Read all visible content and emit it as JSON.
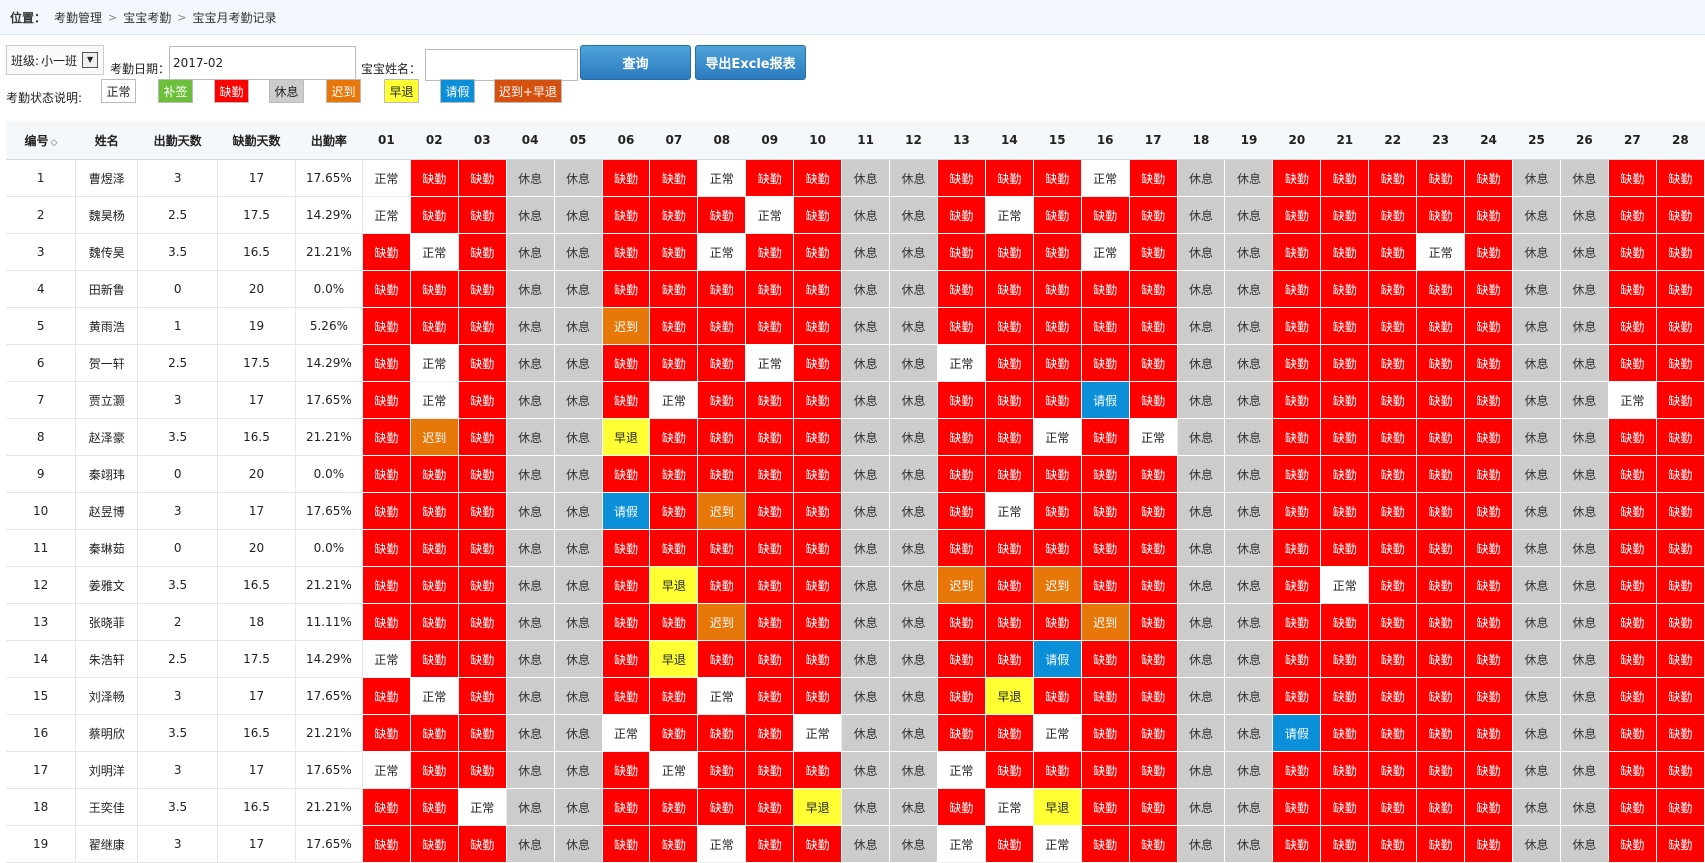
{
  "breadcrumb": {
    "label": "位置：",
    "items": [
      "考勤管理",
      "宝宝考勤",
      "宝宝月考勤记录"
    ]
  },
  "toolbar": {
    "class_label": "班级:",
    "class_value": "小一班",
    "date_label": "考勤日期：",
    "date_value": "2017-02",
    "name_label": "宝宝姓名：",
    "name_value": "",
    "search_button": "查询",
    "export_button": "导出Excle报表"
  },
  "legend": {
    "title": "考勤状态说明:",
    "items": [
      {
        "label": "正常",
        "color": "#ffffff"
      },
      {
        "label": "补签",
        "color": "#6cbf3a"
      },
      {
        "label": "缺勤",
        "color": "#ff0000"
      },
      {
        "label": "休息",
        "color": "#cccccc"
      },
      {
        "label": "迟到",
        "color": "#e8770a"
      },
      {
        "label": "早退",
        "color": "#ffff33"
      },
      {
        "label": "请假",
        "color": "#0b8fd8"
      },
      {
        "label": "迟到+早退",
        "color": "#d6500f"
      }
    ]
  },
  "table": {
    "headers": [
      "编号",
      "姓名",
      "出勤天数",
      "缺勤天数",
      "出勤率"
    ],
    "sort_icon": "sort-diamond-icon",
    "days": [
      "01",
      "02",
      "03",
      "04",
      "05",
      "06",
      "07",
      "08",
      "09",
      "10",
      "11",
      "12",
      "13",
      "14",
      "15",
      "16",
      "17",
      "18",
      "19",
      "20",
      "21",
      "22",
      "23",
      "24",
      "25",
      "26",
      "27",
      "28"
    ],
    "rows": [
      {
        "id": "1",
        "name": "曹煜泽",
        "present": "3",
        "absent": "17",
        "rate": "17.65%",
        "d": [
          "正常",
          "缺勤",
          "缺勤",
          "休息",
          "休息",
          "缺勤",
          "缺勤",
          "正常",
          "缺勤",
          "缺勤",
          "休息",
          "休息",
          "缺勤",
          "缺勤",
          "缺勤",
          "正常",
          "缺勤",
          "休息",
          "休息",
          "缺勤",
          "缺勤",
          "缺勤",
          "缺勤",
          "缺勤",
          "休息",
          "休息",
          "缺勤",
          "缺勤"
        ]
      },
      {
        "id": "2",
        "name": "魏昊杨",
        "present": "2.5",
        "absent": "17.5",
        "rate": "14.29%",
        "d": [
          "正常",
          "缺勤",
          "缺勤",
          "休息",
          "休息",
          "缺勤",
          "缺勤",
          "缺勤",
          "正常",
          "缺勤",
          "休息",
          "休息",
          "缺勤",
          "正常",
          "缺勤",
          "缺勤",
          "缺勤",
          "休息",
          "休息",
          "缺勤",
          "缺勤",
          "缺勤",
          "缺勤",
          "缺勤",
          "休息",
          "休息",
          "缺勤",
          "缺勤"
        ]
      },
      {
        "id": "3",
        "name": "魏传昊",
        "present": "3.5",
        "absent": "16.5",
        "rate": "21.21%",
        "d": [
          "缺勤",
          "正常",
          "缺勤",
          "休息",
          "休息",
          "缺勤",
          "缺勤",
          "正常",
          "缺勤",
          "缺勤",
          "休息",
          "休息",
          "缺勤",
          "缺勤",
          "缺勤",
          "正常",
          "缺勤",
          "休息",
          "休息",
          "缺勤",
          "缺勤",
          "缺勤",
          "正常",
          "缺勤",
          "休息",
          "休息",
          "缺勤",
          "缺勤"
        ]
      },
      {
        "id": "4",
        "name": "田新鲁",
        "present": "0",
        "absent": "20",
        "rate": "0.0%",
        "d": [
          "缺勤",
          "缺勤",
          "缺勤",
          "休息",
          "休息",
          "缺勤",
          "缺勤",
          "缺勤",
          "缺勤",
          "缺勤",
          "休息",
          "休息",
          "缺勤",
          "缺勤",
          "缺勤",
          "缺勤",
          "缺勤",
          "休息",
          "休息",
          "缺勤",
          "缺勤",
          "缺勤",
          "缺勤",
          "缺勤",
          "休息",
          "休息",
          "缺勤",
          "缺勤"
        ]
      },
      {
        "id": "5",
        "name": "黄雨浩",
        "present": "1",
        "absent": "19",
        "rate": "5.26%",
        "d": [
          "缺勤",
          "缺勤",
          "缺勤",
          "休息",
          "休息",
          "迟到",
          "缺勤",
          "缺勤",
          "缺勤",
          "缺勤",
          "休息",
          "休息",
          "缺勤",
          "缺勤",
          "缺勤",
          "缺勤",
          "缺勤",
          "休息",
          "休息",
          "缺勤",
          "缺勤",
          "缺勤",
          "缺勤",
          "缺勤",
          "休息",
          "休息",
          "缺勤",
          "缺勤"
        ]
      },
      {
        "id": "6",
        "name": "贺一轩",
        "present": "2.5",
        "absent": "17.5",
        "rate": "14.29%",
        "d": [
          "缺勤",
          "正常",
          "缺勤",
          "休息",
          "休息",
          "缺勤",
          "缺勤",
          "缺勤",
          "正常",
          "缺勤",
          "休息",
          "休息",
          "正常",
          "缺勤",
          "缺勤",
          "缺勤",
          "缺勤",
          "休息",
          "休息",
          "缺勤",
          "缺勤",
          "缺勤",
          "缺勤",
          "缺勤",
          "休息",
          "休息",
          "缺勤",
          "缺勤"
        ]
      },
      {
        "id": "7",
        "name": "贾立灏",
        "present": "3",
        "absent": "17",
        "rate": "17.65%",
        "d": [
          "缺勤",
          "正常",
          "缺勤",
          "休息",
          "休息",
          "缺勤",
          "正常",
          "缺勤",
          "缺勤",
          "缺勤",
          "休息",
          "休息",
          "缺勤",
          "缺勤",
          "缺勤",
          "请假",
          "缺勤",
          "休息",
          "休息",
          "缺勤",
          "缺勤",
          "缺勤",
          "缺勤",
          "缺勤",
          "休息",
          "休息",
          "正常",
          "缺勤"
        ]
      },
      {
        "id": "8",
        "name": "赵泽豪",
        "present": "3.5",
        "absent": "16.5",
        "rate": "21.21%",
        "d": [
          "缺勤",
          "迟到",
          "缺勤",
          "休息",
          "休息",
          "早退",
          "缺勤",
          "缺勤",
          "缺勤",
          "缺勤",
          "休息",
          "休息",
          "缺勤",
          "缺勤",
          "正常",
          "缺勤",
          "正常",
          "休息",
          "休息",
          "缺勤",
          "缺勤",
          "缺勤",
          "缺勤",
          "缺勤",
          "休息",
          "休息",
          "缺勤",
          "缺勤"
        ]
      },
      {
        "id": "9",
        "name": "秦翊玮",
        "present": "0",
        "absent": "20",
        "rate": "0.0%",
        "d": [
          "缺勤",
          "缺勤",
          "缺勤",
          "休息",
          "休息",
          "缺勤",
          "缺勤",
          "缺勤",
          "缺勤",
          "缺勤",
          "休息",
          "休息",
          "缺勤",
          "缺勤",
          "缺勤",
          "缺勤",
          "缺勤",
          "休息",
          "休息",
          "缺勤",
          "缺勤",
          "缺勤",
          "缺勤",
          "缺勤",
          "休息",
          "休息",
          "缺勤",
          "缺勤"
        ]
      },
      {
        "id": "10",
        "name": "赵昱博",
        "present": "3",
        "absent": "17",
        "rate": "17.65%",
        "d": [
          "缺勤",
          "缺勤",
          "缺勤",
          "休息",
          "休息",
          "请假",
          "缺勤",
          "迟到",
          "缺勤",
          "缺勤",
          "休息",
          "休息",
          "缺勤",
          "正常",
          "缺勤",
          "缺勤",
          "缺勤",
          "休息",
          "休息",
          "缺勤",
          "缺勤",
          "缺勤",
          "缺勤",
          "缺勤",
          "休息",
          "休息",
          "缺勤",
          "缺勤"
        ]
      },
      {
        "id": "11",
        "name": "秦琳茹",
        "present": "0",
        "absent": "20",
        "rate": "0.0%",
        "d": [
          "缺勤",
          "缺勤",
          "缺勤",
          "休息",
          "休息",
          "缺勤",
          "缺勤",
          "缺勤",
          "缺勤",
          "缺勤",
          "休息",
          "休息",
          "缺勤",
          "缺勤",
          "缺勤",
          "缺勤",
          "缺勤",
          "休息",
          "休息",
          "缺勤",
          "缺勤",
          "缺勤",
          "缺勤",
          "缺勤",
          "休息",
          "休息",
          "缺勤",
          "缺勤"
        ]
      },
      {
        "id": "12",
        "name": "姜雅文",
        "present": "3.5",
        "absent": "16.5",
        "rate": "21.21%",
        "d": [
          "缺勤",
          "缺勤",
          "缺勤",
          "休息",
          "休息",
          "缺勤",
          "早退",
          "缺勤",
          "缺勤",
          "缺勤",
          "休息",
          "休息",
          "迟到",
          "缺勤",
          "迟到",
          "缺勤",
          "缺勤",
          "休息",
          "休息",
          "缺勤",
          "正常",
          "缺勤",
          "缺勤",
          "缺勤",
          "休息",
          "休息",
          "缺勤",
          "缺勤"
        ]
      },
      {
        "id": "13",
        "name": "张晓菲",
        "present": "2",
        "absent": "18",
        "rate": "11.11%",
        "d": [
          "缺勤",
          "缺勤",
          "缺勤",
          "休息",
          "休息",
          "缺勤",
          "缺勤",
          "迟到",
          "缺勤",
          "缺勤",
          "休息",
          "休息",
          "缺勤",
          "缺勤",
          "缺勤",
          "迟到",
          "缺勤",
          "休息",
          "休息",
          "缺勤",
          "缺勤",
          "缺勤",
          "缺勤",
          "缺勤",
          "休息",
          "休息",
          "缺勤",
          "缺勤"
        ]
      },
      {
        "id": "14",
        "name": "朱浩轩",
        "present": "2.5",
        "absent": "17.5",
        "rate": "14.29%",
        "d": [
          "正常",
          "缺勤",
          "缺勤",
          "休息",
          "休息",
          "缺勤",
          "早退",
          "缺勤",
          "缺勤",
          "缺勤",
          "休息",
          "休息",
          "缺勤",
          "缺勤",
          "请假",
          "缺勤",
          "缺勤",
          "休息",
          "休息",
          "缺勤",
          "缺勤",
          "缺勤",
          "缺勤",
          "缺勤",
          "休息",
          "休息",
          "缺勤",
          "缺勤"
        ]
      },
      {
        "id": "15",
        "name": "刘泽畅",
        "present": "3",
        "absent": "17",
        "rate": "17.65%",
        "d": [
          "缺勤",
          "正常",
          "缺勤",
          "休息",
          "休息",
          "缺勤",
          "缺勤",
          "正常",
          "缺勤",
          "缺勤",
          "休息",
          "休息",
          "缺勤",
          "早退",
          "缺勤",
          "缺勤",
          "缺勤",
          "休息",
          "休息",
          "缺勤",
          "缺勤",
          "缺勤",
          "缺勤",
          "缺勤",
          "休息",
          "休息",
          "缺勤",
          "缺勤"
        ]
      },
      {
        "id": "16",
        "name": "蔡明欣",
        "present": "3.5",
        "absent": "16.5",
        "rate": "21.21%",
        "d": [
          "缺勤",
          "缺勤",
          "缺勤",
          "休息",
          "休息",
          "正常",
          "缺勤",
          "缺勤",
          "缺勤",
          "正常",
          "休息",
          "休息",
          "缺勤",
          "缺勤",
          "正常",
          "缺勤",
          "缺勤",
          "休息",
          "休息",
          "请假",
          "缺勤",
          "缺勤",
          "缺勤",
          "缺勤",
          "休息",
          "休息",
          "缺勤",
          "缺勤"
        ]
      },
      {
        "id": "17",
        "name": "刘明洋",
        "present": "3",
        "absent": "17",
        "rate": "17.65%",
        "d": [
          "正常",
          "缺勤",
          "缺勤",
          "休息",
          "休息",
          "缺勤",
          "正常",
          "缺勤",
          "缺勤",
          "缺勤",
          "休息",
          "休息",
          "正常",
          "缺勤",
          "缺勤",
          "缺勤",
          "缺勤",
          "休息",
          "休息",
          "缺勤",
          "缺勤",
          "缺勤",
          "缺勤",
          "缺勤",
          "休息",
          "休息",
          "缺勤",
          "缺勤"
        ]
      },
      {
        "id": "18",
        "name": "王奕佳",
        "present": "3.5",
        "absent": "16.5",
        "rate": "21.21%",
        "d": [
          "缺勤",
          "缺勤",
          "正常",
          "休息",
          "休息",
          "缺勤",
          "缺勤",
          "缺勤",
          "缺勤",
          "早退",
          "休息",
          "休息",
          "缺勤",
          "正常",
          "早退",
          "缺勤",
          "缺勤",
          "休息",
          "休息",
          "缺勤",
          "缺勤",
          "缺勤",
          "缺勤",
          "缺勤",
          "休息",
          "休息",
          "缺勤",
          "缺勤"
        ]
      },
      {
        "id": "19",
        "name": "翟继康",
        "present": "3",
        "absent": "17",
        "rate": "17.65%",
        "d": [
          "缺勤",
          "缺勤",
          "缺勤",
          "休息",
          "休息",
          "缺勤",
          "缺勤",
          "正常",
          "缺勤",
          "缺勤",
          "休息",
          "休息",
          "正常",
          "缺勤",
          "正常",
          "缺勤",
          "缺勤",
          "休息",
          "休息",
          "缺勤",
          "缺勤",
          "缺勤",
          "缺勤",
          "缺勤",
          "休息",
          "休息",
          "缺勤",
          "缺勤"
        ]
      }
    ]
  }
}
